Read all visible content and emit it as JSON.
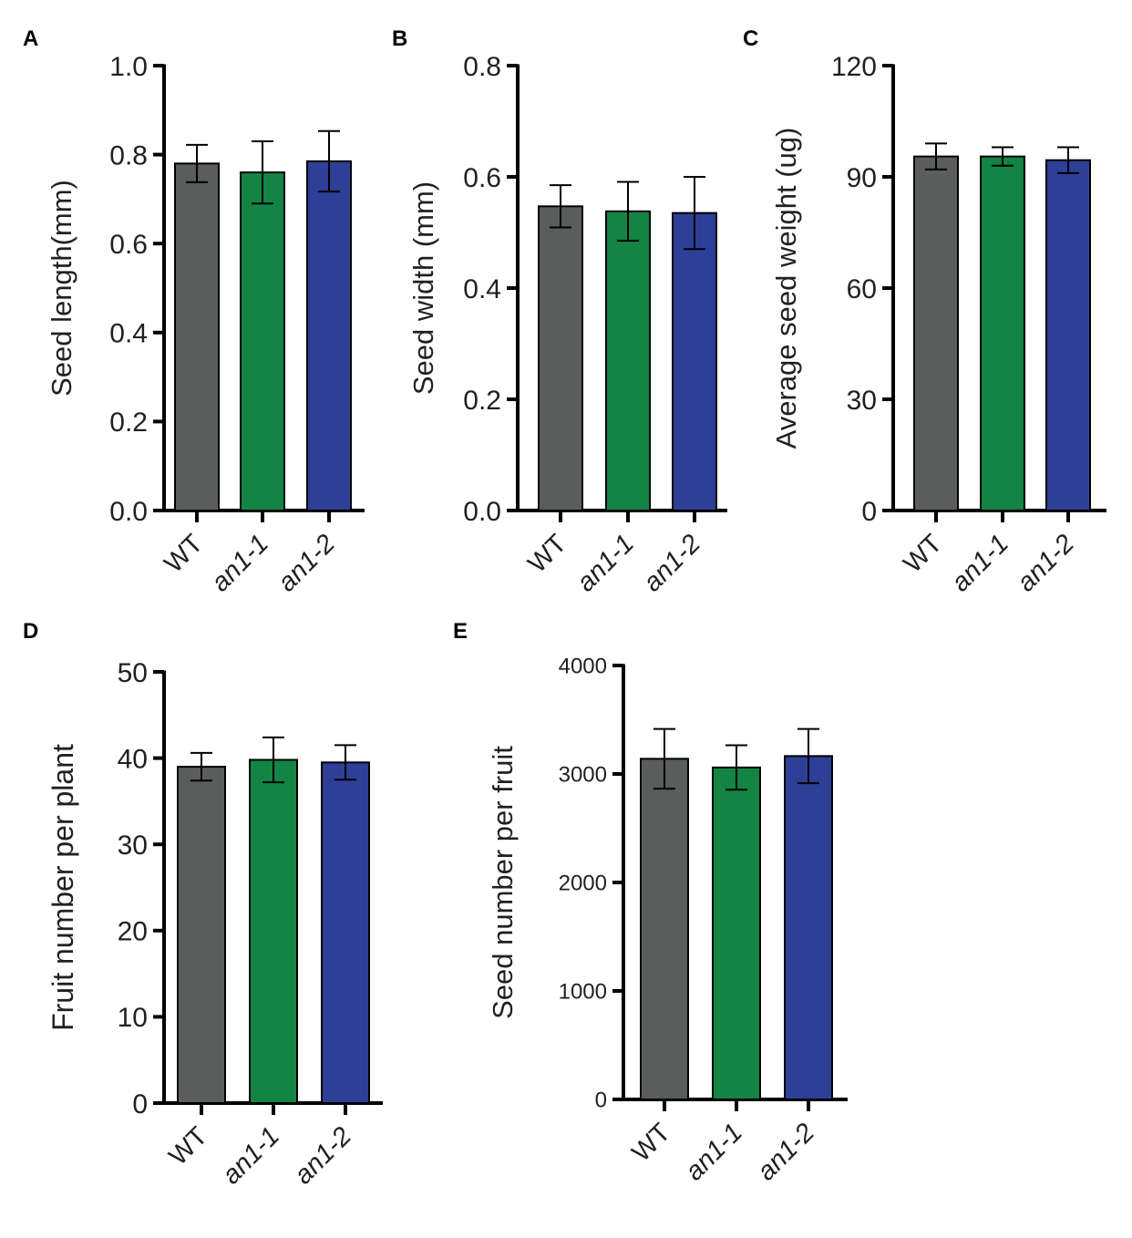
{
  "colors": {
    "WT": "#5b5d5c",
    "an1-1": "#138443",
    "an1-2": "#2e3f97",
    "axis": "#000000",
    "text": "#231f20"
  },
  "chart_data": [
    {
      "panel": "A",
      "type": "bar",
      "categories": [
        "WT",
        "an1-1",
        "an1-2"
      ],
      "category_italic": [
        false,
        true,
        true
      ],
      "values": [
        0.78,
        0.76,
        0.785
      ],
      "errors": [
        0.042,
        0.07,
        0.068
      ],
      "ylabel": "Seed length(mm)",
      "ylim": [
        0,
        1.0
      ],
      "yticks": [
        0,
        0.2,
        0.4,
        0.6,
        0.8,
        1.0
      ],
      "ytick_labels": [
        "0.0",
        "0.2",
        "0.4",
        "0.6",
        "0.8",
        "1.0"
      ]
    },
    {
      "panel": "B",
      "type": "bar",
      "categories": [
        "WT",
        "an1-1",
        "an1-2"
      ],
      "category_italic": [
        false,
        true,
        true
      ],
      "values": [
        0.547,
        0.538,
        0.535
      ],
      "errors": [
        0.038,
        0.053,
        0.065
      ],
      "ylabel": "Seed width (mm)",
      "ylim": [
        0,
        0.8
      ],
      "yticks": [
        0,
        0.2,
        0.4,
        0.6,
        0.8
      ],
      "ytick_labels": [
        "0.0",
        "0.2",
        "0.4",
        "0.6",
        "0.8"
      ]
    },
    {
      "panel": "C",
      "type": "bar",
      "categories": [
        "WT",
        "an1-1",
        "an1-2"
      ],
      "category_italic": [
        false,
        true,
        true
      ],
      "values": [
        95.5,
        95.5,
        94.5
      ],
      "errors": [
        3.5,
        2.5,
        3.5
      ],
      "ylabel": "Average seed weight (ug)",
      "ylim": [
        0,
        120
      ],
      "yticks": [
        0,
        30,
        60,
        90,
        120
      ],
      "ytick_labels": [
        "0",
        "30",
        "60",
        "90",
        "120"
      ]
    },
    {
      "panel": "D",
      "type": "bar",
      "categories": [
        "WT",
        "an1-1",
        "an1-2"
      ],
      "category_italic": [
        false,
        true,
        true
      ],
      "values": [
        39.0,
        39.8,
        39.5
      ],
      "errors": [
        1.6,
        2.6,
        2.0
      ],
      "ylabel": "Fruit number per plant",
      "ylim": [
        0,
        50
      ],
      "yticks": [
        0,
        10,
        20,
        30,
        40,
        50
      ],
      "ytick_labels": [
        "0",
        "10",
        "20",
        "30",
        "40",
        "50"
      ]
    },
    {
      "panel": "E",
      "type": "bar",
      "categories": [
        "WT",
        "an1-1",
        "an1-2"
      ],
      "category_italic": [
        false,
        true,
        true
      ],
      "values": [
        3140,
        3060,
        3165
      ],
      "errors": [
        275,
        205,
        250
      ],
      "ylabel": "Seed number per fruit",
      "ylim": [
        0,
        4000
      ],
      "yticks": [
        0,
        1000,
        2000,
        3000,
        4000
      ],
      "ytick_labels": [
        "0",
        "1000",
        "2000",
        "3000",
        "4000"
      ]
    }
  ]
}
